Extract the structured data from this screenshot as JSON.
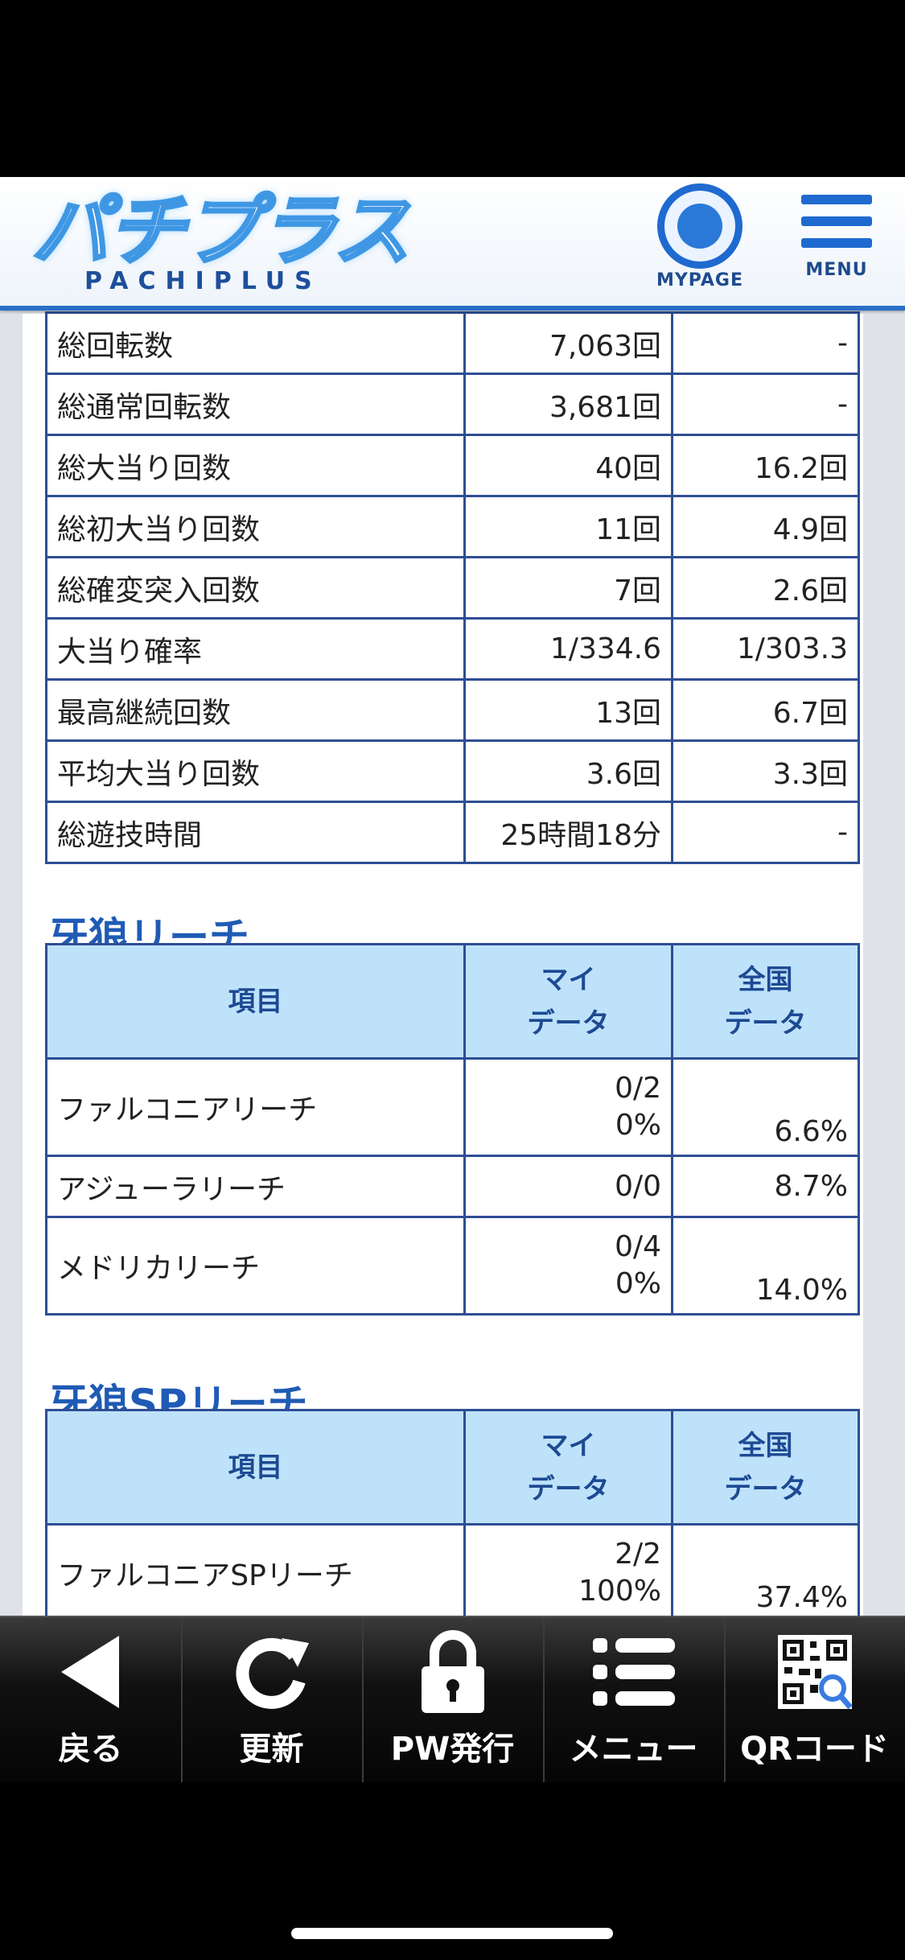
{
  "header": {
    "logo_main": "パチプラス",
    "logo_sub": "PACHIPLUS",
    "mypage_label": "MYPAGE",
    "menu_label": "MENU"
  },
  "stats": {
    "rows": [
      {
        "label": "総回転数",
        "my": "7,063回",
        "national": "-"
      },
      {
        "label": "総通常回転数",
        "my": "3,681回",
        "national": "-"
      },
      {
        "label": "総大当り回数",
        "my": "40回",
        "national": "16.2回"
      },
      {
        "label": "総初大当り回数",
        "my": "11回",
        "national": "4.9回"
      },
      {
        "label": "総確変突入回数",
        "my": "7回",
        "national": "2.6回"
      },
      {
        "label": "大当り確率",
        "my": "1/334.6",
        "national": "1/303.3"
      },
      {
        "label": "最高継続回数",
        "my": "13回",
        "national": "6.7回"
      },
      {
        "label": "平均大当り回数",
        "my": "3.6回",
        "national": "3.3回"
      },
      {
        "label": "総遊技時間",
        "my": "25時間18分",
        "national": "-"
      }
    ]
  },
  "kiba_reach": {
    "title": "牙狼リーチ",
    "head_item": "項目",
    "head_my_1": "マイ",
    "head_my_2": "データ",
    "head_nat_1": "全国",
    "head_nat_2": "データ",
    "rows": [
      {
        "label": "ファルコニアリーチ",
        "my_count": "0/2",
        "my_pct": "0%",
        "national": "6.6%"
      },
      {
        "label": "アジューラリーチ",
        "my_count": "0/0",
        "my_pct": "",
        "national": "8.7%"
      },
      {
        "label": "メドリカリーチ",
        "my_count": "0/4",
        "my_pct": "0%",
        "national": "14.0%"
      }
    ]
  },
  "kiba_sp_reach": {
    "title": "牙狼SPリーチ",
    "head_item": "項目",
    "head_my_1": "マイ",
    "head_my_2": "データ",
    "head_nat_1": "全国",
    "head_nat_2": "データ",
    "rows": [
      {
        "label": "ファルコニアSPリーチ",
        "my_count": "2/2",
        "my_pct": "100%",
        "national": "37.4%"
      }
    ]
  },
  "toolbar": {
    "back": "戻る",
    "refresh": "更新",
    "pw": "PW発行",
    "menu": "メニュー",
    "qr": "QRコード"
  },
  "icons": {
    "back": "back-arrow-icon",
    "refresh": "refresh-icon",
    "pw": "lock-icon",
    "menu": "list-icon",
    "qr": "qr-code-icon"
  },
  "colors": {
    "accent": "#1f5bb5",
    "table_border": "#2e4e94",
    "header_cell": "#bfe2fb"
  }
}
